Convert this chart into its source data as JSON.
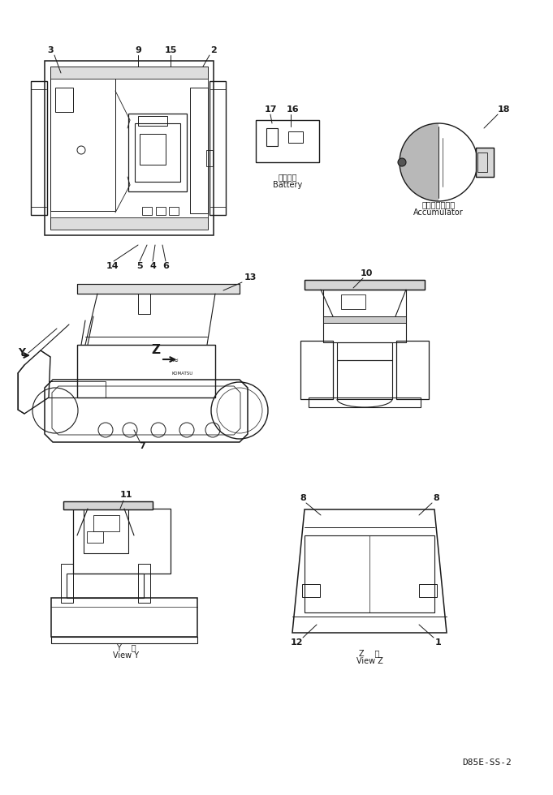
{
  "bg_color": "#ffffff",
  "line_color": "#1a1a1a",
  "fig_width": 6.81,
  "fig_height": 9.8,
  "dpi": 100,
  "footer_text": "D85E-SS-2",
  "battery_label_jp": "バッテリ",
  "battery_label_en": "Battery",
  "accumulator_label_jp": "アキュムレータ",
  "accumulator_label_en": "Accumulator",
  "view_y_label_jp": "Y  視",
  "view_y_label_en": "View Y",
  "view_z_label_jp": "Z  視",
  "view_z_label_en": "View Z"
}
